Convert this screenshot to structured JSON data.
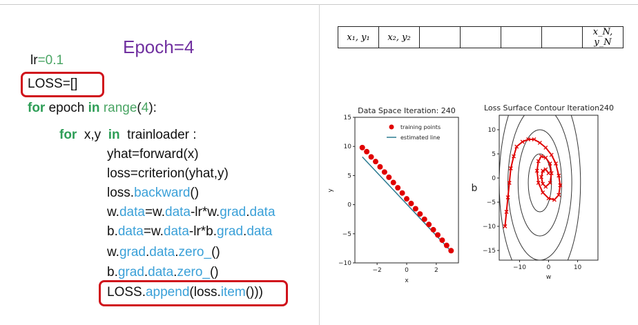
{
  "slide": {
    "epoch_title": "Epoch=4",
    "code": {
      "lr": {
        "name": "lr",
        "op": "=",
        "value": "0.1"
      },
      "loss_init": "LOSS=[]",
      "for_epoch": {
        "kw1": "for",
        "var": " epoch ",
        "kw2": "in",
        "fn": " range",
        "arg1": "(",
        "num": "4",
        "arg2": "):"
      },
      "for_xy": {
        "kw1": "for",
        "vars": "  x,y  ",
        "kw2": "in",
        "rest": "  trainloader :"
      },
      "yhat": "yhat=forward(x)",
      "loss": "loss=criterion(yhat,y)",
      "backward": {
        "obj": "loss.",
        "method": "backward",
        "end": "()"
      },
      "w_update": {
        "p1": "w.",
        "p2": "data",
        "p3": "=w.",
        "p4": "data",
        "p5": "-lr*w.",
        "p6": "grad",
        "p7": ".",
        "p8": "data"
      },
      "b_update": {
        "p1": "b.",
        "p2": "data",
        "p3": "=w.",
        "p4": "data",
        "p5": "-lr*b.",
        "p6": "grad",
        "p7": ".",
        "p8": "data"
      },
      "w_zero": {
        "p1": "w.",
        "p2": "grad",
        "p3": ".",
        "p4": "data",
        "p5": ".",
        "p6": "zero_",
        "p7": "()"
      },
      "b_zero": {
        "p1": "b.",
        "p2": "grad",
        "p3": ".",
        "p4": "data",
        "p5": ".",
        "p6": "zero_",
        "p7": "()"
      },
      "append": {
        "p1": "LOSS.",
        "p2": "append",
        "p3": "(loss.",
        "p4": "item",
        "p5": "()))"
      }
    }
  },
  "data_table": {
    "cells": [
      "x₁, y₁",
      "x₂, y₂",
      "",
      "",
      "",
      "",
      "x_N, y_N"
    ]
  },
  "chart_data": [
    {
      "type": "scatter",
      "title": "Data Space Iteration: 240",
      "xlabel": "x",
      "ylabel": "y",
      "xlim": [
        -3.5,
        3.5
      ],
      "ylim": [
        -10,
        15
      ],
      "xticks": [
        -2,
        0,
        2
      ],
      "yticks": [
        -10,
        -5,
        0,
        5,
        10,
        15
      ],
      "legend": {
        "placement": "top-right",
        "entries": [
          "training points",
          "estimated line"
        ]
      },
      "series": [
        {
          "name": "training points",
          "kind": "points",
          "x": [
            -3,
            -2.7,
            -2.4,
            -2.1,
            -1.8,
            -1.5,
            -1.2,
            -0.9,
            -0.6,
            -0.3,
            0,
            0.3,
            0.6,
            0.9,
            1.2,
            1.5,
            1.8,
            2.1,
            2.4,
            2.7,
            3.0
          ],
          "y": [
            9.8,
            9.1,
            8.2,
            7.4,
            6.5,
            5.6,
            4.7,
            3.8,
            2.9,
            2.0,
            1.0,
            0.2,
            -0.7,
            -1.6,
            -2.5,
            -3.4,
            -4.3,
            -5.2,
            -6.1,
            -7.0,
            -7.9
          ]
        },
        {
          "name": "estimated line",
          "kind": "line",
          "x": [
            -3,
            3
          ],
          "y": [
            8.2,
            -8.0
          ]
        }
      ],
      "colors": {
        "points": "#e00000",
        "line": "#2a7a90"
      }
    },
    {
      "type": "line",
      "title": "Loss Surface Contour Iteration240",
      "xlabel": "w",
      "ylabel": "b",
      "xlim": [
        -17,
        17
      ],
      "ylim": [
        -17,
        13
      ],
      "xticks": [
        -10,
        0,
        10
      ],
      "yticks": [
        -15,
        -10,
        -5,
        0,
        5,
        10
      ],
      "contours": [
        {
          "cx": -3,
          "cy": -1,
          "rx": 4,
          "ry": 6
        },
        {
          "cx": -3,
          "cy": -1,
          "rx": 7.5,
          "ry": 11
        },
        {
          "cx": -3,
          "cy": -1,
          "rx": 11,
          "ry": 16
        },
        {
          "cx": -3,
          "cy": -1,
          "rx": 14,
          "ry": 22
        }
      ],
      "path_x": [
        -15,
        -14.5,
        -14,
        -13.5,
        -13,
        -12,
        -11,
        -9,
        -7,
        -5,
        -3,
        -1,
        1,
        2.5,
        3.5,
        4,
        3.5,
        2,
        0,
        -2,
        -3.5,
        -4,
        -3.5,
        -2.5,
        -1,
        0.5,
        1,
        0.5,
        -1,
        -2,
        -2.5,
        -2,
        -1,
        0
      ],
      "path_y": [
        -10,
        -7,
        -4,
        -1,
        2,
        4.5,
        6.5,
        7.5,
        8,
        8,
        7.3,
        6.3,
        4.8,
        3,
        0.5,
        -1.5,
        -3.5,
        -4.5,
        -4.2,
        -3,
        -1,
        1.5,
        3.5,
        4.5,
        4.2,
        3,
        1,
        -1,
        -1.8,
        -1.2,
        0.2,
        1.5,
        1.8,
        1
      ],
      "colors": {
        "path": "#e00000",
        "contour": "#333333"
      }
    }
  ]
}
